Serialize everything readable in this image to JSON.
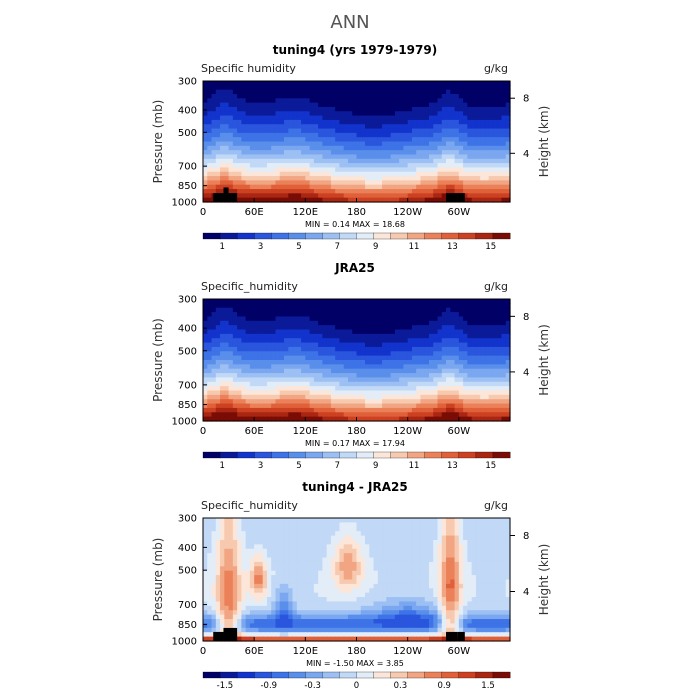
{
  "figure": {
    "title": "ANN"
  },
  "colors": {
    "ramp": [
      "#000066",
      "#0a1a99",
      "#1233cc",
      "#2a55dd",
      "#3d73e6",
      "#5a8eeb",
      "#7aa7ef",
      "#9cc0f3",
      "#c1d8f6",
      "#e3edf8",
      "#fbe6d9",
      "#f7c9ae",
      "#f1a583",
      "#eb8159",
      "#e0603a",
      "#cc4122",
      "#a82612",
      "#7a0c06"
    ],
    "land": "#000000",
    "title": "#444444"
  },
  "chart_data": [
    {
      "type": "heatmap",
      "title": "tuning4 (yrs 1979-1979)",
      "field_label": "Specific humidity",
      "units": "g/kg",
      "ylabel": "Pressure (mb)",
      "ylabel_right": "Height (km)",
      "x_ticks": [
        "0",
        "60E",
        "120E",
        "180",
        "120W",
        "60W"
      ],
      "x_tick_values": [
        0,
        60,
        120,
        180,
        240,
        300
      ],
      "xlim": [
        0,
        360
      ],
      "y_ticks": [
        300,
        400,
        500,
        700,
        850,
        1000
      ],
      "ylim": [
        1000,
        300
      ],
      "height_ticks": [
        8,
        4
      ],
      "min_max": "MIN =    0.14   MAX =   18.68",
      "colorbar_labels": [
        "1",
        "3",
        "5",
        "7",
        "9",
        "11",
        "13",
        "15"
      ],
      "pattern": "q",
      "land_blocks": [
        [
          12,
          24,
          915
        ],
        [
          24,
          30,
          865
        ],
        [
          30,
          40,
          915
        ],
        [
          285,
          298,
          915
        ],
        [
          298,
          307,
          915
        ]
      ]
    },
    {
      "type": "heatmap",
      "title": "JRA25",
      "field_label": "Specific_humidity",
      "units": "g/kg",
      "ylabel": "Pressure (mb)",
      "ylabel_right": "Height (km)",
      "x_ticks": [
        "0",
        "60E",
        "120E",
        "180",
        "120W",
        "60W"
      ],
      "x_tick_values": [
        0,
        60,
        120,
        180,
        240,
        300
      ],
      "xlim": [
        0,
        360
      ],
      "y_ticks": [
        300,
        400,
        500,
        700,
        850,
        1000
      ],
      "ylim": [
        1000,
        300
      ],
      "height_ticks": [
        8,
        4
      ],
      "min_max": "MIN =    0.17   MAX =   17.94",
      "colorbar_labels": [
        "1",
        "3",
        "5",
        "7",
        "9",
        "11",
        "13",
        "15"
      ],
      "pattern": "q",
      "land_blocks": []
    },
    {
      "type": "heatmap",
      "title": "tuning4 - JRA25",
      "field_label": "Specific_humidity",
      "units": "g/kg",
      "ylabel": "Pressure (mb)",
      "ylabel_right": "Height (km)",
      "x_ticks": [
        "0",
        "60E",
        "120E",
        "180",
        "120W",
        "60W"
      ],
      "x_tick_values": [
        0,
        60,
        120,
        180,
        240,
        300
      ],
      "xlim": [
        0,
        360
      ],
      "y_ticks": [
        300,
        400,
        500,
        700,
        850,
        1000
      ],
      "ylim": [
        1000,
        300
      ],
      "height_ticks": [
        8,
        4
      ],
      "min_max": "MIN =   -1.50   MAX =    3.85",
      "colorbar_labels": [
        "-1.5",
        "-0.9",
        "-0.3",
        "0",
        "0.3",
        "0.9",
        "1.5"
      ],
      "pattern": "diff",
      "land_blocks": [
        [
          12,
          24,
          915
        ],
        [
          24,
          40,
          880
        ],
        [
          285,
          298,
          915
        ],
        [
          298,
          307,
          915
        ]
      ]
    }
  ]
}
